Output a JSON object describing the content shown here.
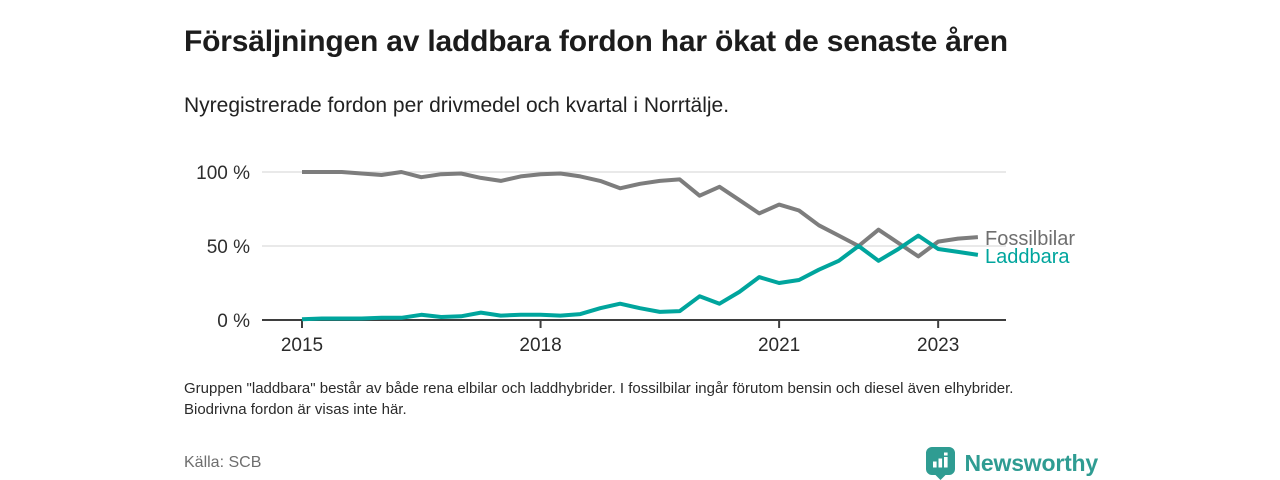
{
  "header": {
    "title": "Försäljningen av laddbara fordon har ökat de senaste åren",
    "subtitle": "Nyregistrerade fordon per drivmedel och kvartal i Norrtälje."
  },
  "chart_data": {
    "type": "line",
    "title": "Nyregistrerade fordon per drivmedel och kvartal i Norrtälje",
    "x_unit": "kvartal",
    "ylim": [
      0,
      100
    ],
    "grid": "horizontal",
    "ytick_labels": [
      "100 %",
      "50 %",
      "0 %"
    ],
    "yticks": [
      100,
      50,
      0
    ],
    "xticks": [
      {
        "label": "2015",
        "index": 0
      },
      {
        "label": "2018",
        "index": 12
      },
      {
        "label": "2021",
        "index": 24
      },
      {
        "label": "2023",
        "index": 32
      }
    ],
    "categories": [
      "2015 Q1",
      "2015 Q2",
      "2015 Q3",
      "2015 Q4",
      "2016 Q1",
      "2016 Q2",
      "2016 Q3",
      "2016 Q4",
      "2017 Q1",
      "2017 Q2",
      "2017 Q3",
      "2017 Q4",
      "2018 Q1",
      "2018 Q2",
      "2018 Q3",
      "2018 Q4",
      "2019 Q1",
      "2019 Q2",
      "2019 Q3",
      "2019 Q4",
      "2020 Q1",
      "2020 Q2",
      "2020 Q3",
      "2020 Q4",
      "2021 Q1",
      "2021 Q2",
      "2021 Q3",
      "2021 Q4",
      "2022 Q1",
      "2022 Q2",
      "2022 Q3",
      "2022 Q4",
      "2023 Q1",
      "2023 Q2",
      "2023 Q3"
    ],
    "series": [
      {
        "name": "Fossilbilar",
        "color": "#7d7d7d",
        "label_color": "#6f6f6f",
        "values": [
          100,
          100,
          100,
          99,
          98,
          100,
          96.5,
          98.5,
          99,
          96,
          94,
          97,
          98.5,
          99,
          97,
          94,
          89,
          92,
          94,
          95,
          84,
          90,
          81,
          72,
          78,
          74,
          64,
          57,
          50,
          61,
          52,
          43,
          53,
          55,
          56
        ]
      },
      {
        "name": "Laddbara",
        "color": "#00a59d",
        "label_color": "#00a59d",
        "values": [
          0.5,
          1,
          1,
          1,
          1.5,
          1.5,
          3.5,
          2,
          2.5,
          5,
          3,
          3.5,
          3.5,
          3,
          4,
          8,
          11,
          8,
          5.5,
          6,
          16,
          11,
          19,
          29,
          25,
          27,
          34,
          40,
          50,
          40,
          48,
          57,
          48,
          46,
          44
        ]
      }
    ],
    "legend_position": "right-of-line-ends"
  },
  "footnote": "Gruppen \"laddbara\" består av både rena elbilar och laddhybrider. I fossilbilar ingår förutom bensin och diesel även elhybrider. Biodrivna fordon är visas inte här.",
  "source": "Källa: SCB",
  "branding": {
    "logo_text": "Newsworthy",
    "logo_icon": "bar-chart-speech-bubble",
    "brand_color": "#2f9c92"
  }
}
